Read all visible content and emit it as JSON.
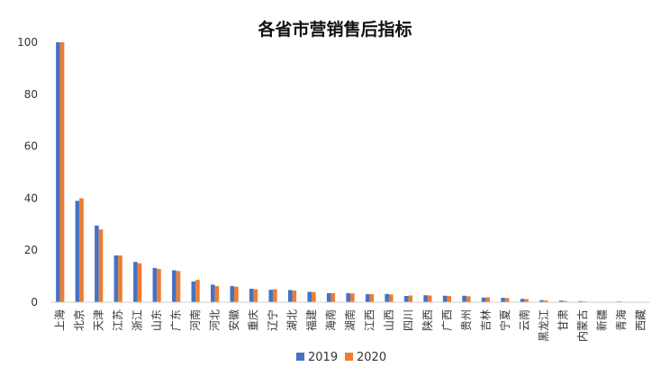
{
  "chart_data": {
    "type": "bar",
    "title": "各省市营销售后指标",
    "xlabel": "",
    "ylabel": "",
    "ylim": [
      0,
      100
    ],
    "yticks": [
      0,
      20,
      40,
      60,
      80,
      100
    ],
    "grid": false,
    "legend_position": "bottom",
    "categories": [
      "上海",
      "北京",
      "天津",
      "江苏",
      "浙江",
      "山东",
      "广东",
      "河南",
      "河北",
      "安徽",
      "重庆",
      "辽宁",
      "湖北",
      "福建",
      "海南",
      "湖南",
      "江西",
      "山西",
      "四川",
      "陕西",
      "广西",
      "贵州",
      "吉林",
      "宁夏",
      "云南",
      "黑龙江",
      "甘肃",
      "内蒙古",
      "新疆",
      "青海",
      "西藏"
    ],
    "series": [
      {
        "name": "2019",
        "color": "#4472C4",
        "values": [
          100,
          39,
          29.5,
          18,
          15.5,
          13.2,
          12.3,
          8,
          6.8,
          6.2,
          5.2,
          4.8,
          4.7,
          4,
          3.5,
          3.5,
          3.1,
          3.2,
          2.4,
          2.7,
          2.5,
          2.5,
          1.8,
          1.7,
          1.3,
          0.8,
          0.6,
          0.4,
          0.1,
          0.3,
          0.1
        ]
      },
      {
        "name": "2020",
        "color": "#ED7D31",
        "values": [
          100,
          40,
          28,
          18,
          15,
          12.8,
          12,
          8.6,
          6.2,
          6,
          5,
          5,
          4.5,
          3.9,
          3.5,
          3.4,
          3.1,
          3,
          2.6,
          2.6,
          2.4,
          2.3,
          1.9,
          1.6,
          1.2,
          0.7,
          0.5,
          0.3,
          0.1,
          0.2,
          0.1
        ]
      }
    ]
  }
}
